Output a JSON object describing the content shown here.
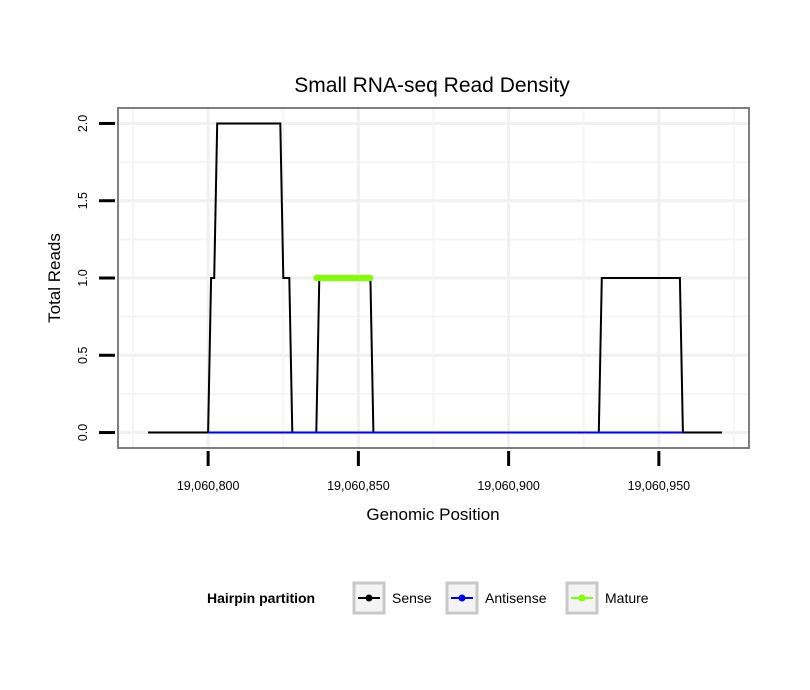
{
  "chart_data": {
    "type": "line",
    "title": "Small RNA-seq Read Density",
    "xlabel": "Genomic Position",
    "ylabel": "Total Reads",
    "xlim": [
      19060770,
      19060980
    ],
    "ylim": [
      -0.1,
      2.1
    ],
    "x_ticks": [
      19060800,
      19060850,
      19060900,
      19060950
    ],
    "x_tick_labels": [
      "19,060,800",
      "19,060,850",
      "19,060,900",
      "19,060,950"
    ],
    "y_ticks": [
      0,
      0.5,
      1,
      1.5,
      2
    ],
    "y_tick_labels": [
      "0.0",
      "0.5",
      "1.0",
      "1.5",
      "2.0"
    ],
    "grid": true,
    "legend": {
      "title": "Hairpin partition",
      "position": "bottom",
      "entries": [
        {
          "label": "Sense",
          "color": "#000000"
        },
        {
          "label": "Antisense",
          "color": "#0000ff"
        },
        {
          "label": "Mature",
          "color": "#7fff00"
        }
      ]
    },
    "series": [
      {
        "name": "Sense",
        "color": "#000000",
        "x": [
          19060780,
          19060800,
          19060801,
          19060802,
          19060803,
          19060824,
          19060825,
          19060827,
          19060828,
          19060836,
          19060837,
          19060854,
          19060855,
          19060930,
          19060931,
          19060957,
          19060958,
          19060971
        ],
        "y": [
          0,
          0,
          1,
          1,
          2,
          2,
          1,
          1,
          0,
          0,
          1,
          1,
          0,
          0,
          1,
          1,
          0,
          0
        ]
      },
      {
        "name": "Antisense",
        "color": "#0000ff",
        "x": [
          19060800,
          19060828,
          19060836,
          19060855,
          19060930,
          19060958
        ],
        "y": [
          0,
          0,
          0,
          0,
          0,
          0
        ]
      },
      {
        "name": "Mature",
        "color": "#7fff00",
        "x": [
          19060836,
          19060854
        ],
        "y": [
          1,
          1
        ]
      }
    ]
  }
}
